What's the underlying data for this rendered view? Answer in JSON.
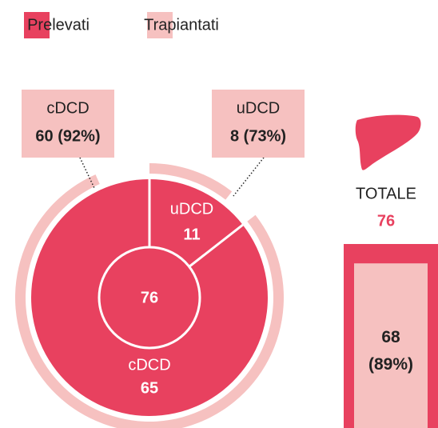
{
  "chart_data": {
    "type": "donut",
    "categories": [
      "uDCD",
      "cDCD"
    ],
    "series": [
      {
        "name": "Prelevati",
        "color": "#e8415f",
        "values": [
          11,
          65
        ]
      },
      {
        "name": "Trapiantati",
        "color": "#f6c1c0",
        "values": [
          8,
          60
        ],
        "value_labels": [
          "8 (73%)",
          "60 (92%)"
        ]
      }
    ],
    "total": 76,
    "summary": {
      "label": "TOTALE",
      "value": 76,
      "transplanted": 68,
      "transplanted_label": "68 (89%)"
    }
  }
}
